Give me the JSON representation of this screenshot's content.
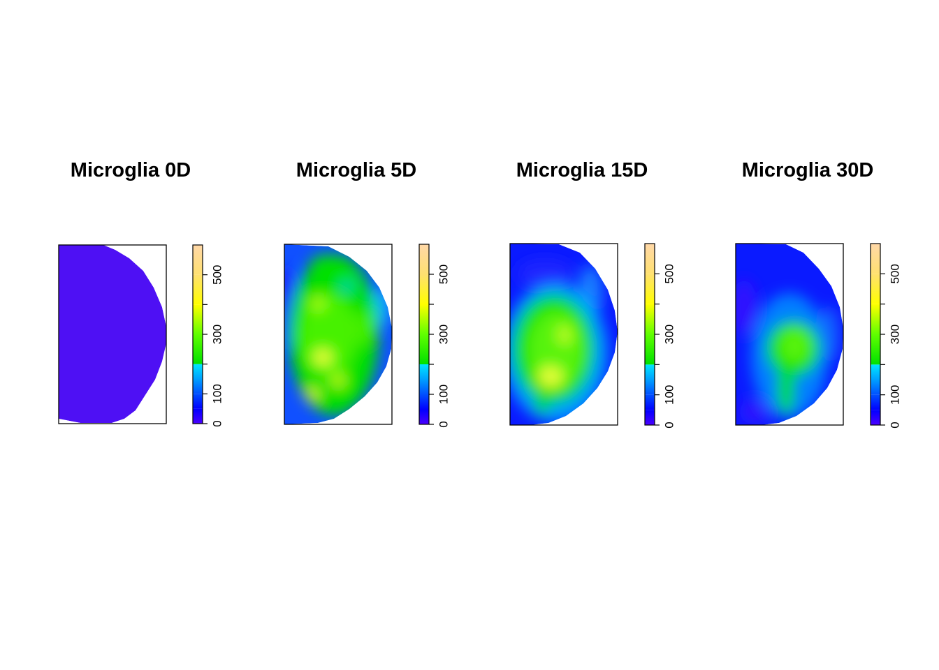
{
  "chart_data": [
    {
      "type": "heatmap",
      "title": "Microglia 0D",
      "colorbar": {
        "ticks": [
          0,
          100,
          300,
          500
        ],
        "range": [
          0,
          600
        ]
      },
      "blobs": [],
      "grid": false
    },
    {
      "type": "heatmap",
      "title": "Microglia 5D",
      "colorbar": {
        "ticks": [
          0,
          100,
          300,
          500
        ],
        "range": [
          0,
          600
        ]
      },
      "grid": false
    },
    {
      "type": "heatmap",
      "title": "Microglia 15D",
      "colorbar": {
        "ticks": [
          0,
          100,
          300,
          500
        ],
        "range": [
          0,
          600
        ]
      },
      "grid": false
    },
    {
      "type": "heatmap",
      "title": "Microglia 30D",
      "colorbar": {
        "ticks": [
          0,
          100,
          300,
          500
        ],
        "range": [
          0,
          600
        ]
      },
      "grid": false
    }
  ],
  "colors": {
    "scale_stops": [
      [
        0,
        "#4b00ff"
      ],
      [
        50,
        "#0000ff"
      ],
      [
        100,
        "#0050ff"
      ],
      [
        150,
        "#00a0ff"
      ],
      [
        200,
        "#00e6ff"
      ],
      [
        200,
        "#00e000"
      ],
      [
        300,
        "#60ff00"
      ],
      [
        400,
        "#ffff00"
      ],
      [
        500,
        "#ffe070"
      ],
      [
        600,
        "#ffd8a8"
      ]
    ]
  }
}
